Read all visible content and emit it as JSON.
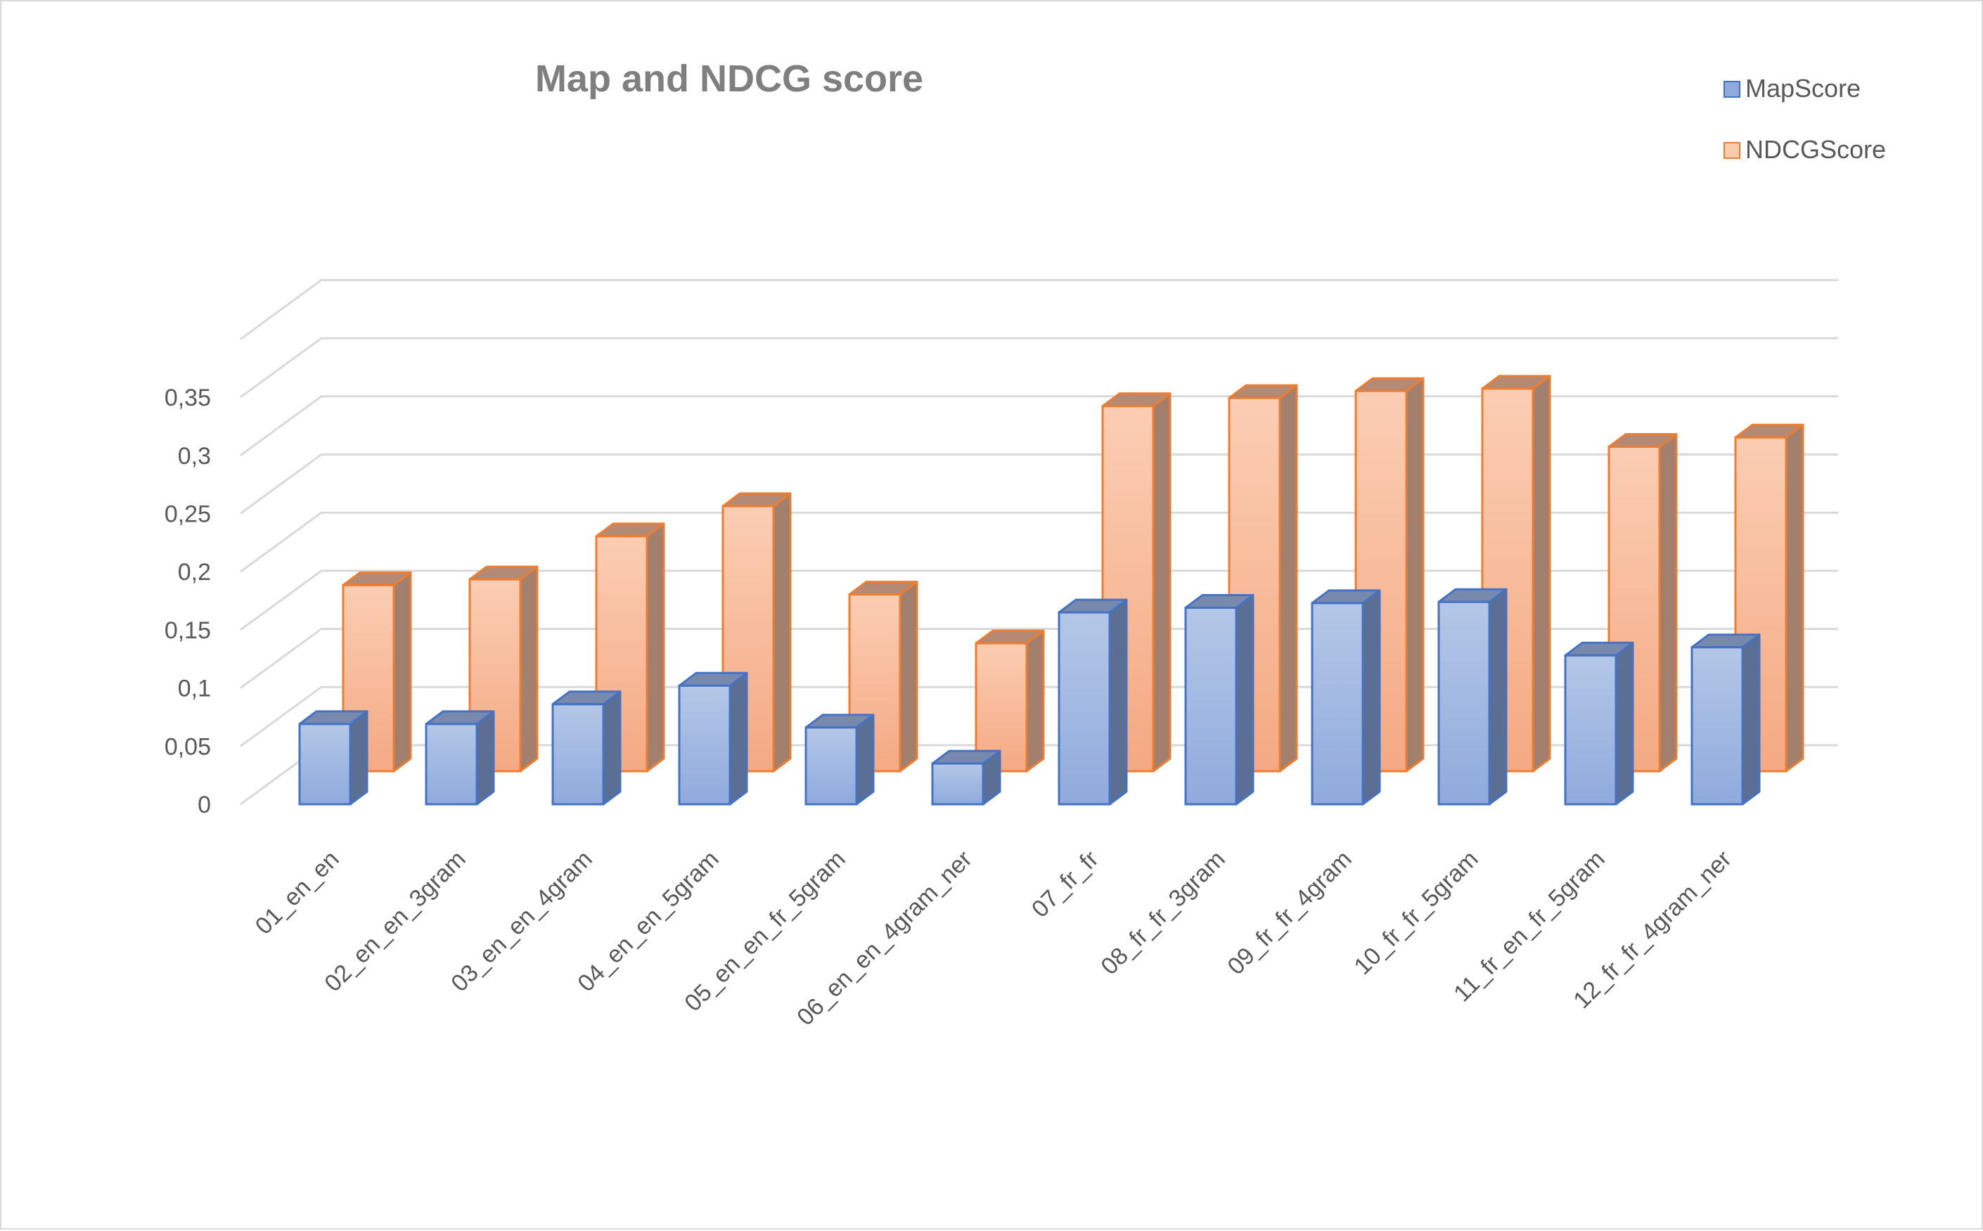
{
  "chart_data": {
    "type": "bar",
    "title": "Map and NDCG score",
    "xlabel": "",
    "ylabel": "",
    "ylim": [
      0,
      0.35
    ],
    "yticks": [
      "0",
      "0,05",
      "0,1",
      "0,15",
      "0,2",
      "0,25",
      "0,3",
      "0,35"
    ],
    "ytick_values": [
      0,
      0.05,
      0.1,
      0.15,
      0.2,
      0.25,
      0.3,
      0.35
    ],
    "grid": true,
    "legend_position": "top-right",
    "categories": [
      "01_en_en",
      "02_en_en_3gram",
      "03_en_en_4gram",
      "04_en_en_5gram",
      "05_en_en_fr_5gram",
      "06_en_en_4gram_ner",
      "07_fr_fr",
      "08_fr_fr_3gram",
      "09_fr_fr_4gram",
      "10_fr_fr_5gram",
      "11_fr_en_fr_5gram",
      "12_fr_fr_4gram_ner"
    ],
    "series": [
      {
        "name": "MapScore",
        "color": "#8faadc",
        "edge_color": "#4472c4",
        "values": [
          0.069,
          0.069,
          0.086,
          0.102,
          0.066,
          0.035,
          0.165,
          0.169,
          0.173,
          0.174,
          0.128,
          0.135
        ]
      },
      {
        "name": "NDCGScore",
        "color": "#f8cbad",
        "edge_color": "#ed7d31",
        "values": [
          0.16,
          0.165,
          0.202,
          0.228,
          0.152,
          0.11,
          0.314,
          0.321,
          0.327,
          0.329,
          0.279,
          0.287
        ]
      }
    ]
  }
}
